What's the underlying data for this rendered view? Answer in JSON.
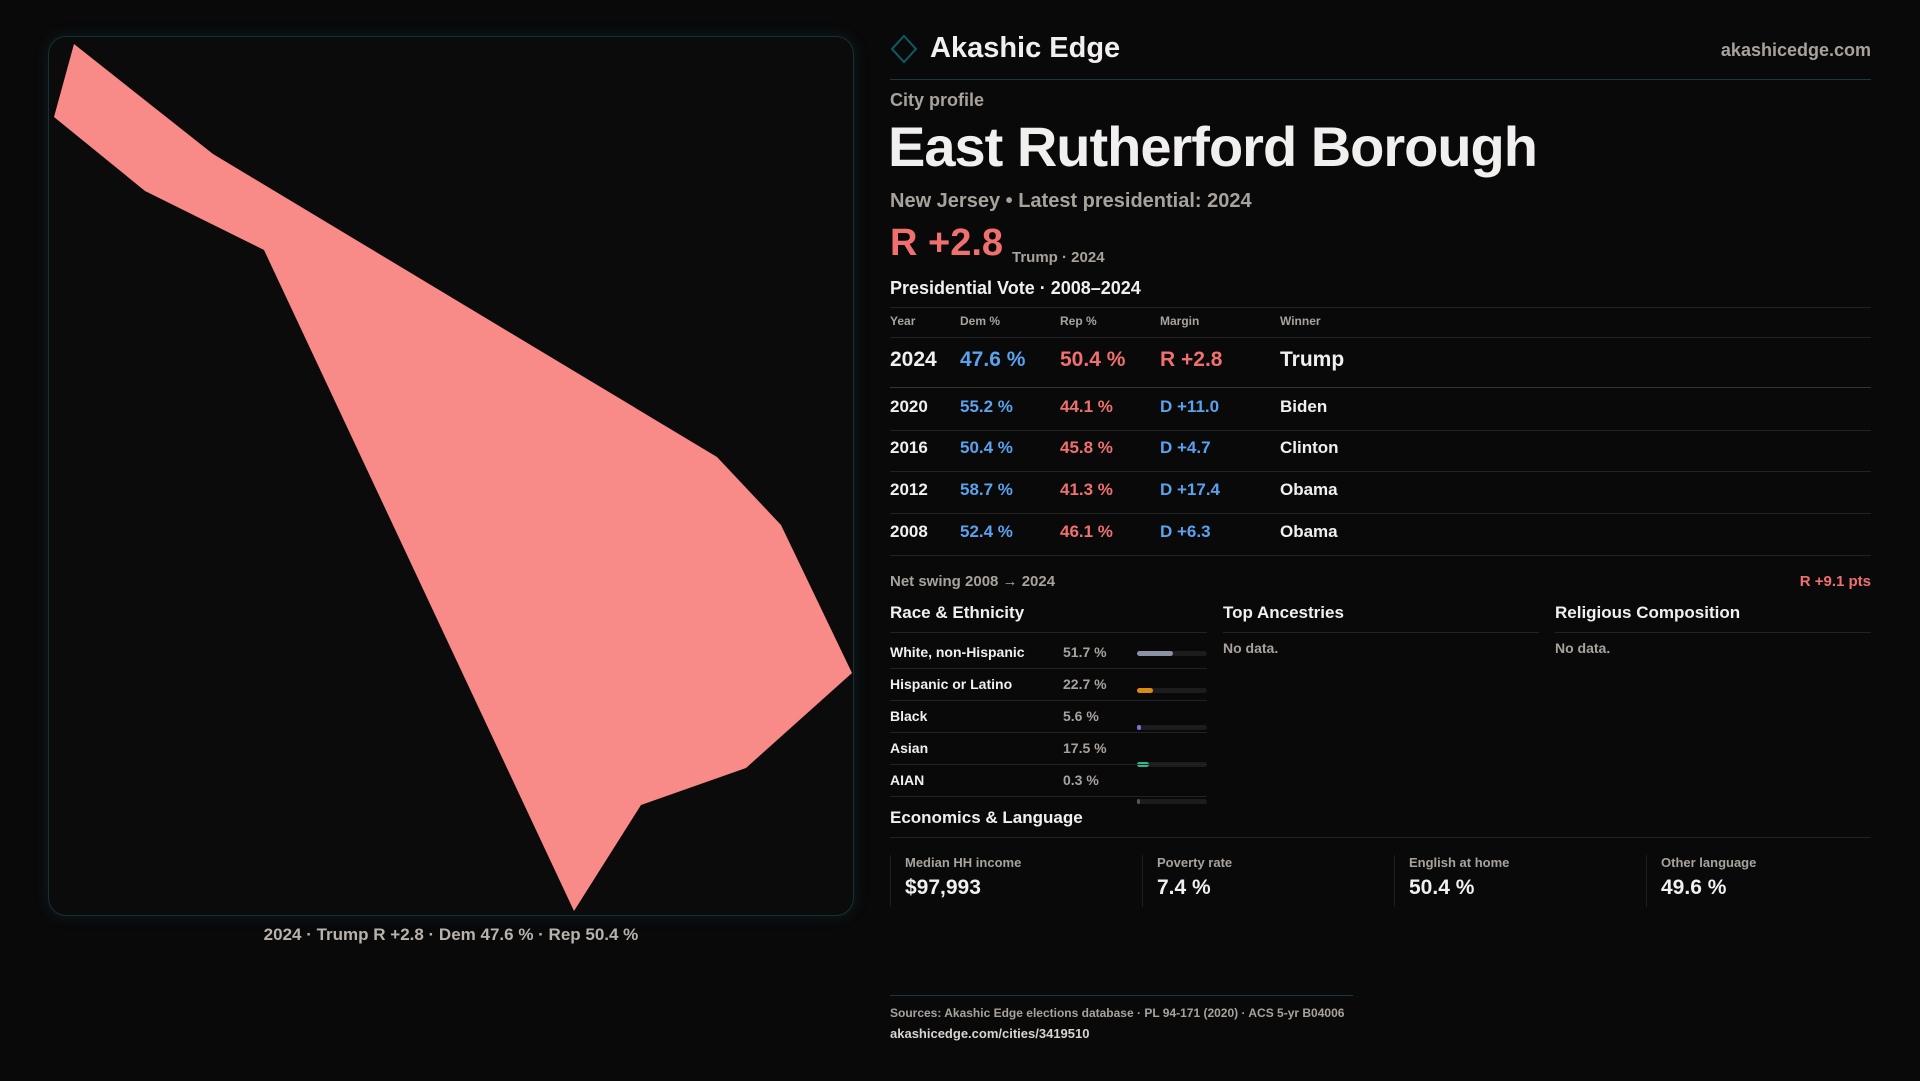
{
  "header": {
    "brand": "Akashic Edge",
    "site": "akashicedge.com"
  },
  "profile": {
    "kicker": "City profile",
    "title": "East Rutherford Borough",
    "subtitle": "New Jersey • Latest presidential: 2024",
    "margin": "R +2.8",
    "margin_note": "Trump · 2024"
  },
  "map": {
    "caption": "2024 · Trump R +2.8 · Dem 47.6 % · Rep 50.4 %",
    "fill": "#f88a88"
  },
  "votes": {
    "title": "Presidential Vote · 2008–2024",
    "headers": [
      "Year",
      "Dem %",
      "Rep %",
      "Margin",
      "Winner"
    ],
    "rows": [
      {
        "year": "2024",
        "dem": "47.6 %",
        "rep": "50.4 %",
        "margin": "R +2.8",
        "winner": "Trump",
        "party": "R"
      },
      {
        "year": "2020",
        "dem": "55.2 %",
        "rep": "44.1 %",
        "margin": "D +11.0",
        "winner": "Biden",
        "party": "D"
      },
      {
        "year": "2016",
        "dem": "50.4 %",
        "rep": "45.8 %",
        "margin": "D +4.7",
        "winner": "Clinton",
        "party": "D"
      },
      {
        "year": "2012",
        "dem": "58.7 %",
        "rep": "41.3 %",
        "margin": "D +17.4",
        "winner": "Obama",
        "party": "D"
      },
      {
        "year": "2008",
        "dem": "52.4 %",
        "rep": "46.1 %",
        "margin": "D +6.3",
        "winner": "Obama",
        "party": "D"
      }
    ],
    "swing_label": "Net swing 2008 → 2024",
    "swing_value": "R +9.1 pts"
  },
  "race": {
    "title": "Race & Ethnicity",
    "rows": [
      {
        "label": "White, non-Hispanic",
        "value": "51.7 %",
        "pct": 51.7,
        "color": "#8a93a6"
      },
      {
        "label": "Hispanic or Latino",
        "value": "22.7 %",
        "pct": 22.7,
        "color": "#d98c14"
      },
      {
        "label": "Black",
        "value": "5.6 %",
        "pct": 5.6,
        "color": "#8a6ad8"
      },
      {
        "label": "Asian",
        "value": "17.5 %",
        "pct": 17.5,
        "color": "#2fb88a"
      },
      {
        "label": "AIAN",
        "value": "0.3 %",
        "pct": 0.3,
        "color": "#555"
      }
    ]
  },
  "ancestries": {
    "title": "Top Ancestries",
    "empty": "No data."
  },
  "religion": {
    "title": "Religious Composition",
    "empty": "No data."
  },
  "economics": {
    "title": "Economics & Language",
    "metrics": [
      {
        "label": "Median HH income",
        "value": "$97,993"
      },
      {
        "label": "Poverty rate",
        "value": "7.4 %"
      },
      {
        "label": "English at home",
        "value": "50.4 %"
      },
      {
        "label": "Other language",
        "value": "49.6 %"
      }
    ]
  },
  "footer": {
    "sources": "Sources: Akashic Edge elections database · PL 94-171 (2020) · ACS 5-yr B04006",
    "url": "akashicedge.com/cities/3419510"
  }
}
